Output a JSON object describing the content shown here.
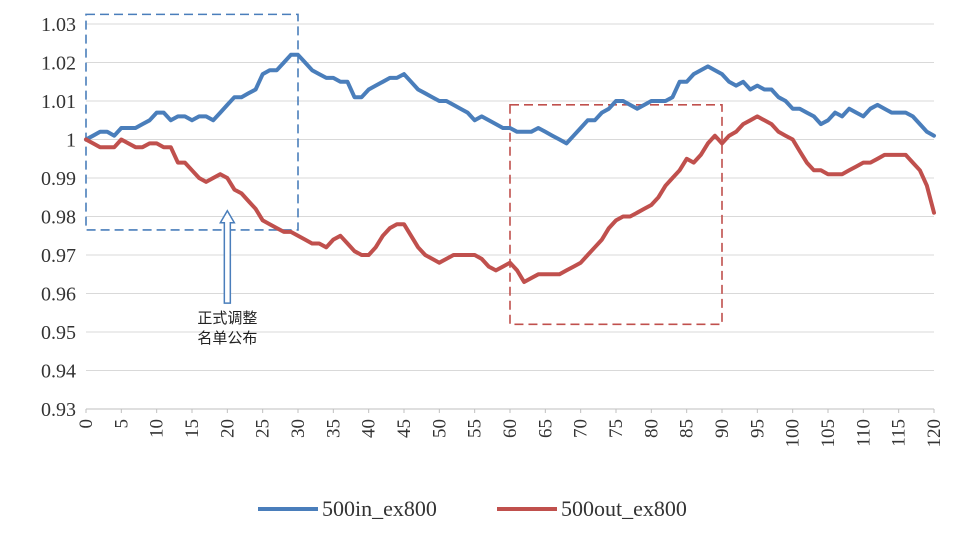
{
  "chart_data": {
    "type": "line",
    "xlim": [
      0,
      120
    ],
    "ylim": [
      0.93,
      1.03
    ],
    "x_ticks": [
      "0",
      "5",
      "10",
      "15",
      "20",
      "25",
      "30",
      "35",
      "40",
      "45",
      "50",
      "55",
      "60",
      "65",
      "70",
      "75",
      "80",
      "85",
      "90",
      "95",
      "100",
      "105",
      "110",
      "115",
      "120"
    ],
    "y_ticks": [
      "1.03",
      "1.02",
      "1.01",
      "1",
      "0.99",
      "0.98",
      "0.97",
      "0.96",
      "0.95",
      "0.94",
      "0.93"
    ],
    "grid": "horizontal",
    "legend_position": "bottom",
    "series": [
      {
        "name": "500in_ex800",
        "color": "#4a7ebb",
        "x": [
          0,
          1,
          2,
          3,
          4,
          5,
          6,
          7,
          8,
          9,
          10,
          11,
          12,
          13,
          14,
          15,
          16,
          17,
          18,
          19,
          20,
          21,
          22,
          23,
          24,
          25,
          26,
          27,
          28,
          29,
          30,
          31,
          32,
          33,
          34,
          35,
          36,
          37,
          38,
          39,
          40,
          41,
          42,
          43,
          44,
          45,
          46,
          47,
          48,
          49,
          50,
          51,
          52,
          53,
          54,
          55,
          56,
          57,
          58,
          59,
          60,
          61,
          62,
          63,
          64,
          65,
          66,
          67,
          68,
          69,
          70,
          71,
          72,
          73,
          74,
          75,
          76,
          77,
          78,
          79,
          80,
          81,
          82,
          83,
          84,
          85,
          86,
          87,
          88,
          89,
          90,
          91,
          92,
          93,
          94,
          95,
          96,
          97,
          98,
          99,
          100,
          101,
          102,
          103,
          104,
          105,
          106,
          107,
          108,
          109,
          110,
          111,
          112,
          113,
          114,
          115,
          116,
          117,
          118,
          119,
          120
        ],
        "values": [
          1.0,
          1.001,
          1.002,
          1.002,
          1.001,
          1.003,
          1.003,
          1.003,
          1.004,
          1.005,
          1.007,
          1.007,
          1.005,
          1.006,
          1.006,
          1.005,
          1.006,
          1.006,
          1.005,
          1.007,
          1.009,
          1.011,
          1.011,
          1.012,
          1.013,
          1.017,
          1.018,
          1.018,
          1.02,
          1.022,
          1.022,
          1.02,
          1.018,
          1.017,
          1.016,
          1.016,
          1.015,
          1.015,
          1.011,
          1.011,
          1.013,
          1.014,
          1.015,
          1.016,
          1.016,
          1.017,
          1.015,
          1.013,
          1.012,
          1.011,
          1.01,
          1.01,
          1.009,
          1.008,
          1.007,
          1.005,
          1.006,
          1.005,
          1.004,
          1.003,
          1.003,
          1.002,
          1.002,
          1.002,
          1.003,
          1.002,
          1.001,
          1.0,
          0.999,
          1.001,
          1.003,
          1.005,
          1.005,
          1.007,
          1.008,
          1.01,
          1.01,
          1.009,
          1.008,
          1.009,
          1.01,
          1.01,
          1.01,
          1.011,
          1.015,
          1.015,
          1.017,
          1.018,
          1.019,
          1.018,
          1.017,
          1.015,
          1.014,
          1.015,
          1.013,
          1.014,
          1.013,
          1.013,
          1.011,
          1.01,
          1.008,
          1.008,
          1.007,
          1.006,
          1.004,
          1.005,
          1.007,
          1.006,
          1.008,
          1.007,
          1.006,
          1.008,
          1.009,
          1.008,
          1.007,
          1.007,
          1.007,
          1.006,
          1.004,
          1.002,
          1.001
        ]
      },
      {
        "name": "500out_ex800",
        "color": "#c0504d",
        "x": [
          0,
          1,
          2,
          3,
          4,
          5,
          6,
          7,
          8,
          9,
          10,
          11,
          12,
          13,
          14,
          15,
          16,
          17,
          18,
          19,
          20,
          21,
          22,
          23,
          24,
          25,
          26,
          27,
          28,
          29,
          30,
          31,
          32,
          33,
          34,
          35,
          36,
          37,
          38,
          39,
          40,
          41,
          42,
          43,
          44,
          45,
          46,
          47,
          48,
          49,
          50,
          51,
          52,
          53,
          54,
          55,
          56,
          57,
          58,
          59,
          60,
          61,
          62,
          63,
          64,
          65,
          66,
          67,
          68,
          69,
          70,
          71,
          72,
          73,
          74,
          75,
          76,
          77,
          78,
          79,
          80,
          81,
          82,
          83,
          84,
          85,
          86,
          87,
          88,
          89,
          90,
          91,
          92,
          93,
          94,
          95,
          96,
          97,
          98,
          99,
          100,
          101,
          102,
          103,
          104,
          105,
          106,
          107,
          108,
          109,
          110,
          111,
          112,
          113,
          114,
          115,
          116,
          117,
          118,
          119,
          120
        ],
        "values": [
          1.0,
          0.999,
          0.998,
          0.998,
          0.998,
          1.0,
          0.999,
          0.998,
          0.998,
          0.999,
          0.999,
          0.998,
          0.998,
          0.994,
          0.994,
          0.992,
          0.99,
          0.989,
          0.99,
          0.991,
          0.99,
          0.987,
          0.986,
          0.984,
          0.982,
          0.979,
          0.978,
          0.977,
          0.976,
          0.976,
          0.975,
          0.974,
          0.973,
          0.973,
          0.972,
          0.974,
          0.975,
          0.973,
          0.971,
          0.97,
          0.97,
          0.972,
          0.975,
          0.977,
          0.978,
          0.978,
          0.975,
          0.972,
          0.97,
          0.969,
          0.968,
          0.969,
          0.97,
          0.97,
          0.97,
          0.97,
          0.969,
          0.967,
          0.966,
          0.967,
          0.968,
          0.966,
          0.963,
          0.964,
          0.965,
          0.965,
          0.965,
          0.965,
          0.966,
          0.967,
          0.968,
          0.97,
          0.972,
          0.974,
          0.977,
          0.979,
          0.98,
          0.98,
          0.981,
          0.982,
          0.983,
          0.985,
          0.988,
          0.99,
          0.992,
          0.995,
          0.994,
          0.996,
          0.999,
          1.001,
          0.999,
          1.001,
          1.002,
          1.004,
          1.005,
          1.006,
          1.005,
          1.004,
          1.002,
          1.001,
          1.0,
          0.997,
          0.994,
          0.992,
          0.992,
          0.991,
          0.991,
          0.991,
          0.992,
          0.993,
          0.994,
          0.994,
          0.995,
          0.996,
          0.996,
          0.996,
          0.996,
          0.994,
          0.992,
          0.988,
          0.981
        ]
      }
    ],
    "highlight_boxes": [
      {
        "color": "#4a7ebb",
        "x_range": [
          0,
          30
        ],
        "y_range": [
          0.9765,
          1.0325
        ]
      },
      {
        "color": "#c0504d",
        "x_range": [
          60,
          90
        ],
        "y_range": [
          0.952,
          1.009
        ]
      }
    ],
    "annotation": {
      "lines": [
        "正式调整",
        "名单公布"
      ],
      "arrow_x": 20,
      "arrow_from_y": 0.9575,
      "arrow_to_y": 0.9815
    }
  }
}
